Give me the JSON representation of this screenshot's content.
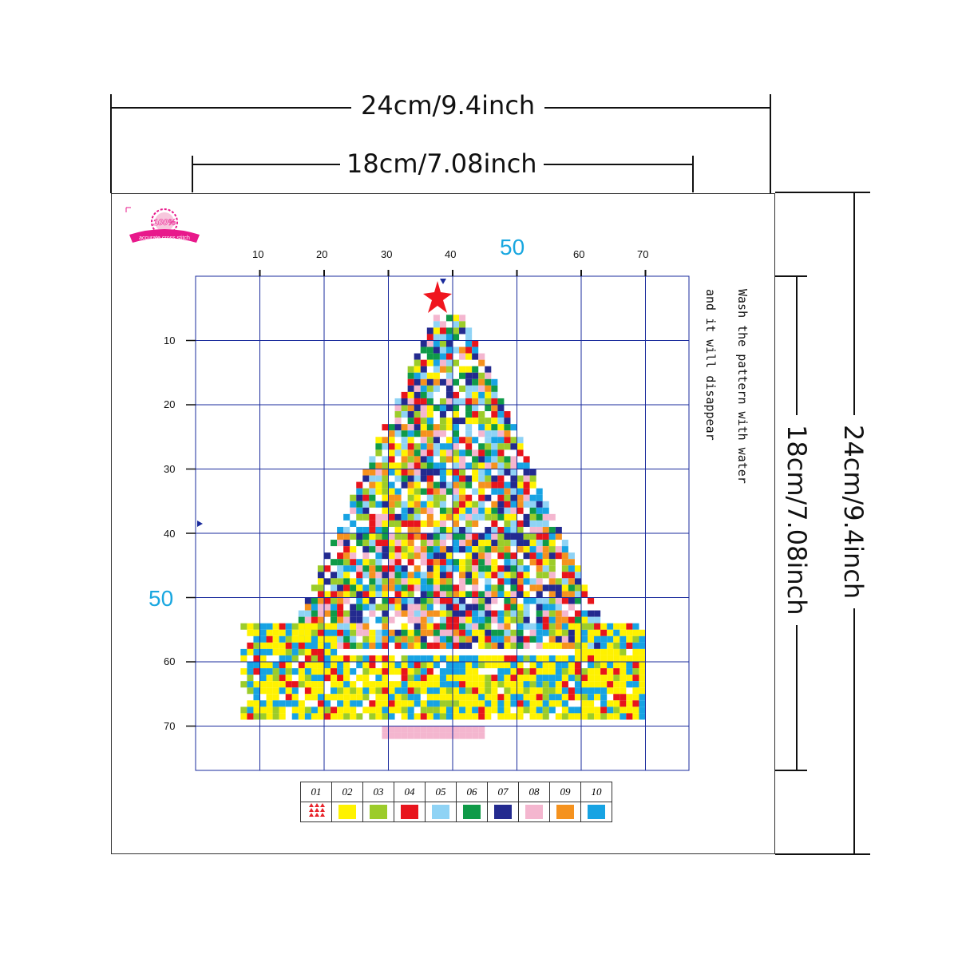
{
  "dimensions": {
    "outer_width": "24cm/9.4inch",
    "inner_width": "18cm/7.08inch",
    "outer_height": "24cm/9.4inch",
    "inner_height": "18cm/7.08inch"
  },
  "badge": {
    "top_text": "100%",
    "bottom_text": "accurate cross stitch",
    "color": "#e8198b"
  },
  "grid": {
    "x_ticks": [
      "10",
      "20",
      "30",
      "40",
      "50",
      "60",
      "70"
    ],
    "y_ticks": [
      "10",
      "20",
      "30",
      "40",
      "50",
      "60",
      "70"
    ],
    "highlight_tick": "50",
    "line_color": "#1a2b9c",
    "highlight_color": "#19a7e0"
  },
  "note": {
    "line1": "Wash the pattern with water",
    "line2": "and it will disappear"
  },
  "legend": {
    "codes": [
      "01",
      "02",
      "03",
      "04",
      "05",
      "06",
      "07",
      "08",
      "09",
      "10"
    ],
    "colors": [
      "#e8232a",
      "#fff200",
      "#9ccc2a",
      "#e8141c",
      "#8fd3f5",
      "#0f9a48",
      "#232a8f",
      "#f4b6cf",
      "#f5921e",
      "#17a3e3"
    ],
    "icon_names": [
      "triangle-symbol-icon"
    ]
  }
}
